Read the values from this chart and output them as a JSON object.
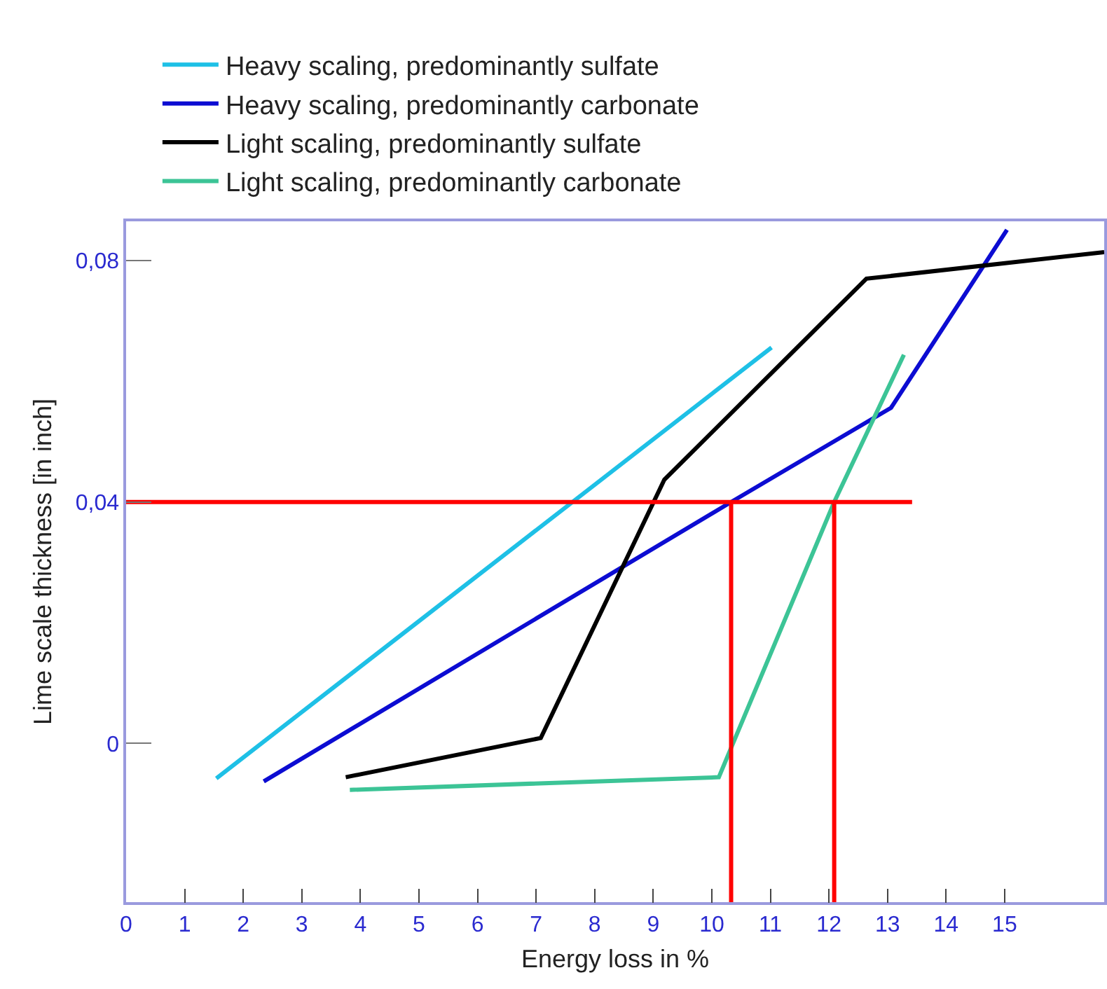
{
  "chart_data": {
    "type": "line",
    "xlabel": "Energy loss in %",
    "ylabel": "Lime scale thickness [in inch]",
    "xlim": [
      0,
      16.7
    ],
    "xticks": [
      0,
      1,
      2,
      3,
      4,
      5,
      6,
      7,
      8,
      9,
      10,
      11,
      12,
      13,
      14,
      15
    ],
    "ylim": [
      -0.0263,
      0.0865
    ],
    "yticks": [
      {
        "value": 0,
        "label": "0"
      },
      {
        "value": 0.04,
        "label": "0,04"
      },
      {
        "value": 0.08,
        "label": "0,08"
      }
    ],
    "grid": false,
    "legend": "top",
    "marker": "none",
    "line_style": "solid",
    "series": [
      {
        "name": "Heavy scaling, predominantly sulfate",
        "color": "#1ec0e6",
        "x": [
          1.54,
          11.02
        ],
        "values": [
          -0.0058,
          0.0656
        ]
      },
      {
        "name": "Heavy scaling, predominantly carbonate",
        "color": "#0c0cd2",
        "x": [
          2.35,
          10.33,
          13.06,
          15.04
        ],
        "values": [
          -0.0063,
          0.04,
          0.0556,
          0.0851
        ]
      },
      {
        "name": "Light scaling, predominantly sulfate",
        "color": "#000000",
        "x": [
          3.75,
          7.08,
          9.19,
          12.64,
          16.7
        ],
        "values": [
          -0.0056,
          0.0009,
          0.0437,
          0.077,
          0.0814
        ]
      },
      {
        "name": "Light scaling, predominantly carbonate",
        "color": "#3cc496",
        "x": [
          3.82,
          10.12,
          12.09,
          13.28
        ],
        "values": [
          -0.0077,
          -0.0056,
          0.04,
          0.0644
        ]
      },
      {
        "color": "#ff0000",
        "x": [
          0,
          13.42
        ],
        "values": [
          0.04,
          0.04
        ]
      },
      {
        "color": "#ff0000",
        "x": [
          10.33,
          10.33
        ],
        "values": [
          -0.0263,
          0.04
        ]
      },
      {
        "color": "#ff0000",
        "x": [
          12.09,
          12.09
        ],
        "values": [
          -0.0263,
          0.04
        ]
      }
    ]
  }
}
